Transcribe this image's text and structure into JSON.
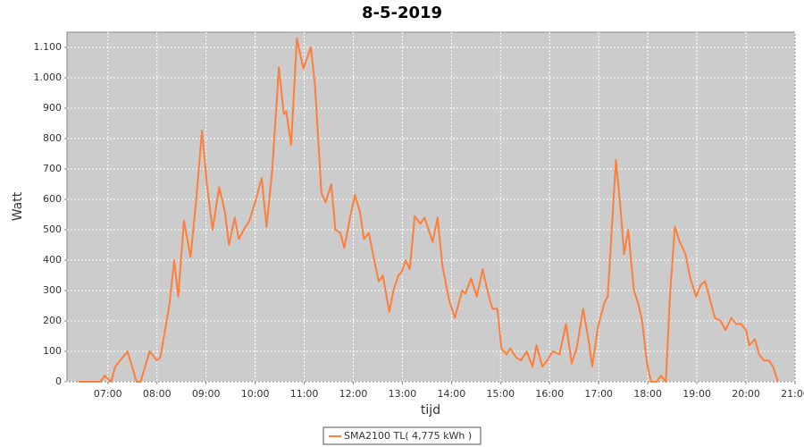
{
  "chart_data": {
    "type": "line",
    "title": "8-5-2019",
    "x_label": "tijd",
    "y_label": "Watt",
    "x": [
      "06:24",
      "06:51",
      "06:56",
      "07:04",
      "07:09",
      "07:24",
      "07:35",
      "07:40",
      "07:51",
      "08:00",
      "08:04",
      "08:15",
      "08:21",
      "08:26",
      "08:33",
      "08:41",
      "08:48",
      "08:55",
      "09:01",
      "09:08",
      "09:16",
      "09:23",
      "09:28",
      "09:35",
      "09:40",
      "09:46",
      "09:53",
      "10:01",
      "10:08",
      "10:14",
      "10:21",
      "10:29",
      "10:35",
      "10:38",
      "10:44",
      "10:51",
      "10:59",
      "11:08",
      "11:13",
      "11:21",
      "11:26",
      "11:33",
      "11:38",
      "11:44",
      "11:49",
      "11:56",
      "12:02",
      "12:08",
      "12:13",
      "12:19",
      "12:24",
      "12:31",
      "12:36",
      "12:44",
      "12:49",
      "12:55",
      "12:59",
      "13:04",
      "13:09",
      "13:15",
      "13:22",
      "13:27",
      "13:32",
      "13:37",
      "13:43",
      "13:49",
      "13:57",
      "14:04",
      "14:13",
      "14:17",
      "14:24",
      "14:31",
      "14:38",
      "14:44",
      "14:50",
      "14:56",
      "15:01",
      "15:07",
      "15:12",
      "15:19",
      "15:25",
      "15:32",
      "15:39",
      "15:44",
      "15:51",
      "15:57",
      "16:04",
      "16:12",
      "16:20",
      "16:27",
      "16:33",
      "16:41",
      "16:48",
      "16:52",
      "16:59",
      "17:07",
      "17:11",
      "17:17",
      "17:21",
      "17:27",
      "17:31",
      "17:36",
      "17:43",
      "17:48",
      "17:53",
      "17:59",
      "18:04",
      "18:11",
      "18:16",
      "18:22",
      "18:27",
      "18:33",
      "18:39",
      "18:46",
      "18:52",
      "18:59",
      "19:05",
      "19:10",
      "19:16",
      "19:22",
      "19:29",
      "19:35",
      "19:42",
      "19:48",
      "19:54",
      "20:00",
      "20:04",
      "20:11",
      "20:16",
      "20:22",
      "20:28",
      "20:33",
      "20:39"
    ],
    "series": [
      {
        "name": "SMA2100 TL( 4,775 kWh )",
        "color": "#ff7f3a",
        "values": [
          0,
          0,
          20,
          0,
          50,
          100,
          0,
          0,
          100,
          70,
          80,
          250,
          400,
          280,
          530,
          410,
          600,
          826,
          650,
          500,
          640,
          560,
          450,
          540,
          470,
          500,
          530,
          600,
          670,
          510,
          700,
          1035,
          880,
          890,
          780,
          1130,
          1030,
          1100,
          980,
          620,
          590,
          650,
          500,
          490,
          440,
          540,
          615,
          560,
          470,
          490,
          420,
          330,
          350,
          230,
          300,
          350,
          360,
          400,
          370,
          545,
          520,
          540,
          500,
          460,
          540,
          380,
          270,
          210,
          300,
          290,
          340,
          280,
          370,
          300,
          240,
          240,
          110,
          90,
          110,
          80,
          70,
          100,
          50,
          120,
          50,
          70,
          100,
          90,
          190,
          60,
          110,
          240,
          130,
          50,
          180,
          260,
          280,
          550,
          730,
          560,
          420,
          500,
          300,
          260,
          200,
          60,
          0,
          0,
          20,
          0,
          280,
          510,
          460,
          420,
          340,
          280,
          320,
          330,
          270,
          210,
          200,
          170,
          210,
          190,
          190,
          170,
          120,
          140,
          90,
          70,
          70,
          50,
          0
        ]
      }
    ],
    "xlim": [
      "06:10",
      "21:00"
    ],
    "xticks": [
      "07:00",
      "08:00",
      "09:00",
      "10:00",
      "11:00",
      "12:00",
      "13:00",
      "14:00",
      "15:00",
      "16:00",
      "17:00",
      "18:00",
      "19:00",
      "20:00",
      "21:00"
    ],
    "ylim": [
      0,
      1150
    ],
    "yticks": [
      0,
      100,
      200,
      300,
      400,
      500,
      600,
      700,
      800,
      900,
      {
        "value": 1000,
        "label": "1.000"
      },
      {
        "value": 1100,
        "label": "1.100"
      }
    ],
    "grid": true
  }
}
